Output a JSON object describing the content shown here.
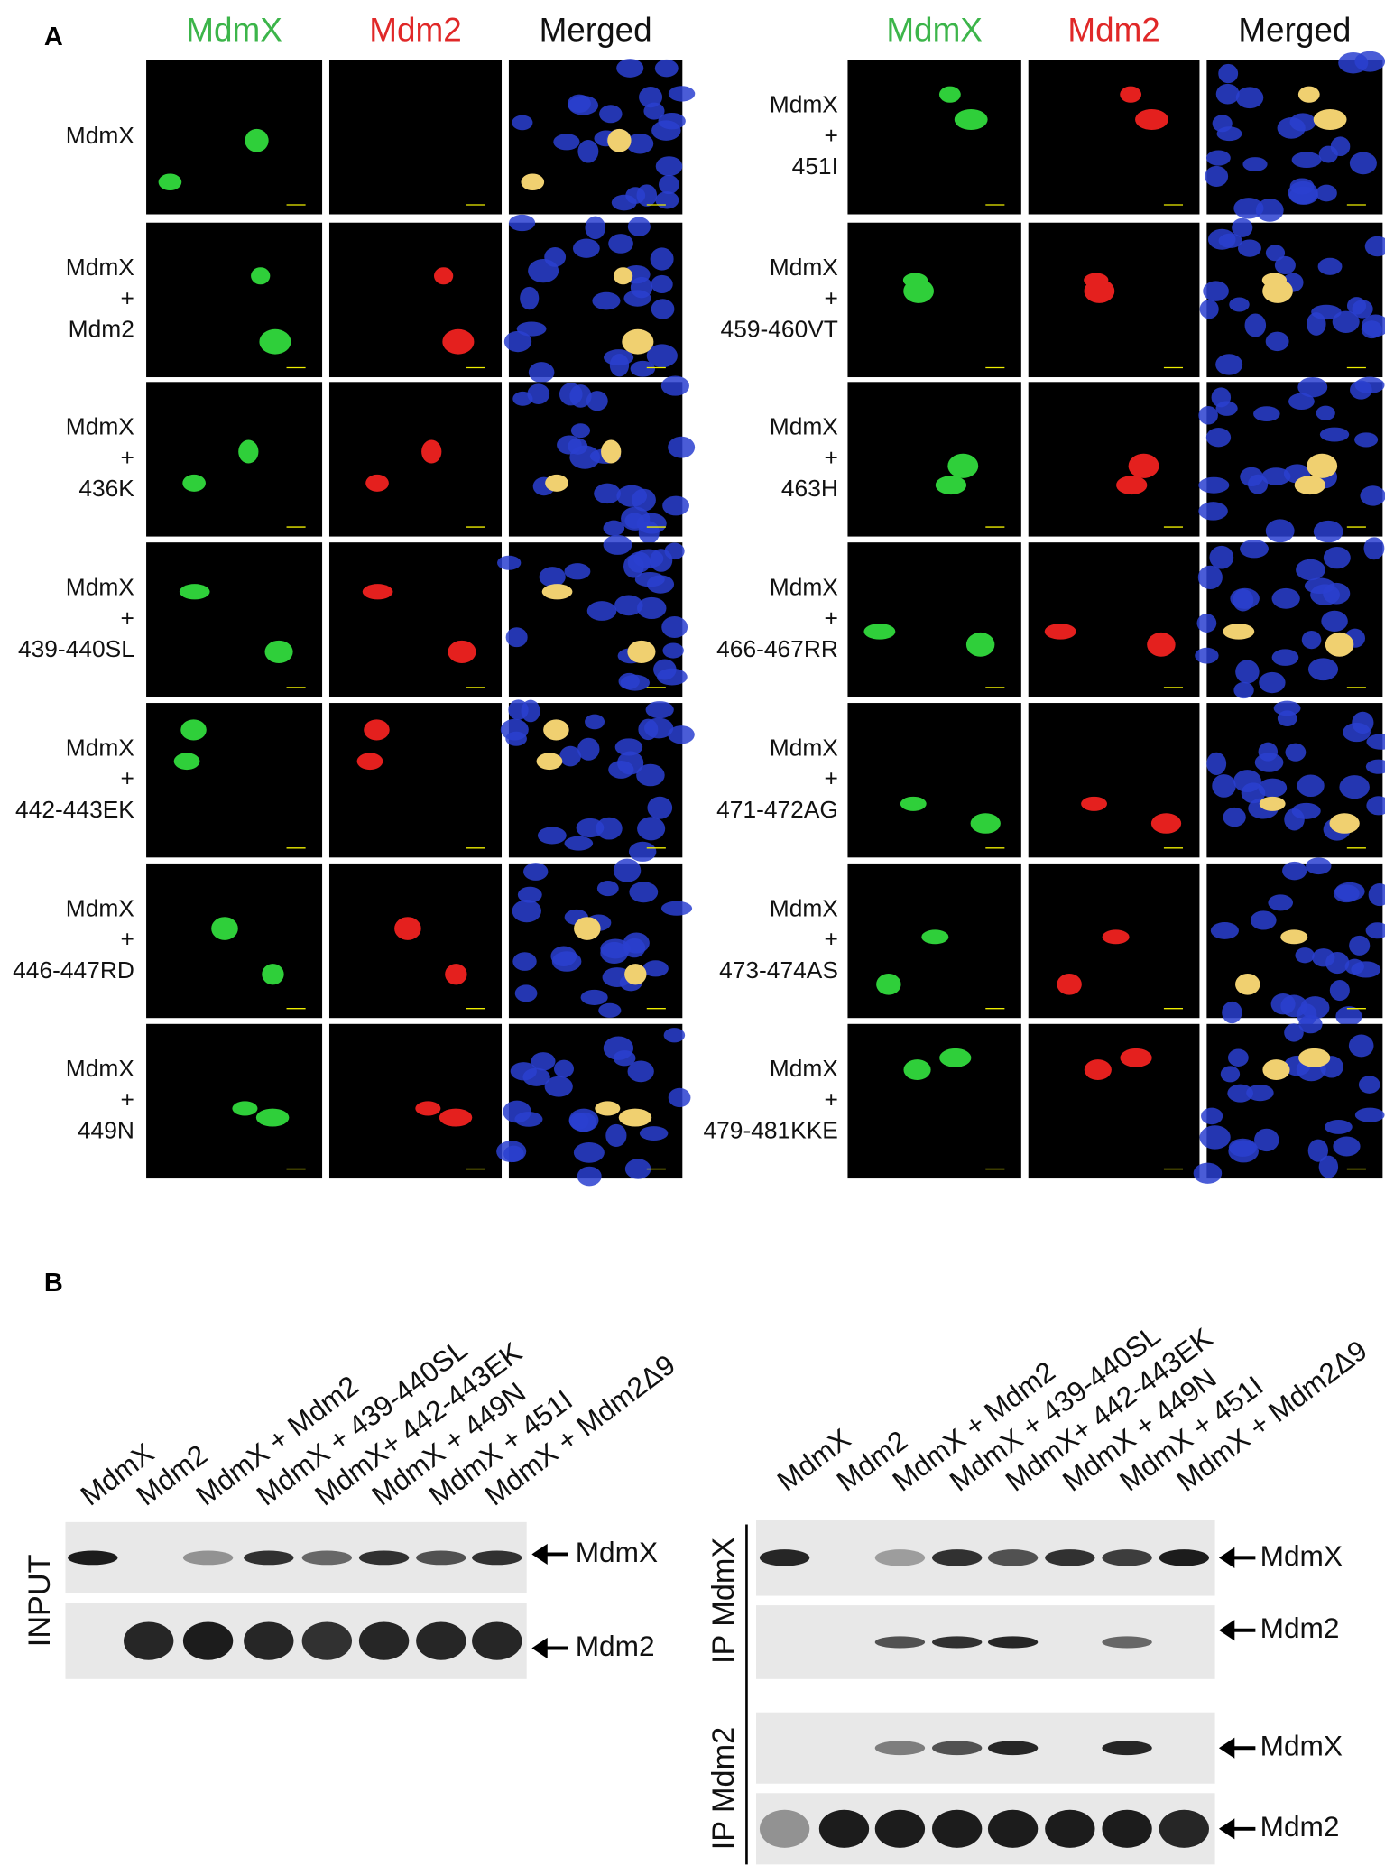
{
  "panel_a": {
    "label": "A",
    "left": {
      "headers": [
        "MdmX",
        "Mdm2",
        "Merged"
      ],
      "rows": [
        [
          "MdmX"
        ],
        [
          "MdmX",
          "+",
          "Mdm2"
        ],
        [
          "MdmX",
          "+",
          "436K"
        ],
        [
          "MdmX",
          "+",
          "439-440SL"
        ],
        [
          "MdmX",
          "+",
          "442-443EK"
        ],
        [
          "MdmX",
          "+",
          "446-447RD"
        ],
        [
          "MdmX",
          "+",
          "449N"
        ]
      ]
    },
    "right": {
      "headers": [
        "MdmX",
        "Mdm2",
        "Merged"
      ],
      "rows": [
        [
          "MdmX",
          "+",
          "451I"
        ],
        [
          "MdmX",
          "+",
          "459-460VT"
        ],
        [
          "MdmX",
          "+",
          "463H"
        ],
        [
          "MdmX",
          "+",
          "466-467RR"
        ],
        [
          "MdmX",
          "+",
          "471-472AG"
        ],
        [
          "MdmX",
          "+",
          "473-474AS"
        ],
        [
          "MdmX",
          "+",
          "479-481KKE"
        ]
      ]
    }
  },
  "panel_b": {
    "label": "B",
    "input": {
      "lanes": [
        "MdmX",
        "Mdm2",
        "MdmX + Mdm2",
        "MdmX + 439-440SL",
        "MdmX+ 442-443EK",
        "MdmX + 449N",
        "MdmX + 451I",
        "MdmX + Mdm2Δ9"
      ],
      "row_label": "INPUT",
      "bands": [
        "MdmX",
        "Mdm2"
      ]
    },
    "ip": {
      "lanes": [
        "MdmX",
        "Mdm2",
        "MdmX + Mdm2",
        "MdmX + 439-440SL",
        "MdmX+ 442-443EK",
        "MdmX + 449N",
        "MdmX + 451I",
        "MdmX + Mdm2Δ9"
      ],
      "groups": [
        {
          "label": "IP MdmX",
          "bands": [
            "MdmX",
            "Mdm2"
          ]
        },
        {
          "label": "IP Mdm2",
          "bands": [
            "MdmX",
            "Mdm2"
          ]
        }
      ]
    }
  }
}
